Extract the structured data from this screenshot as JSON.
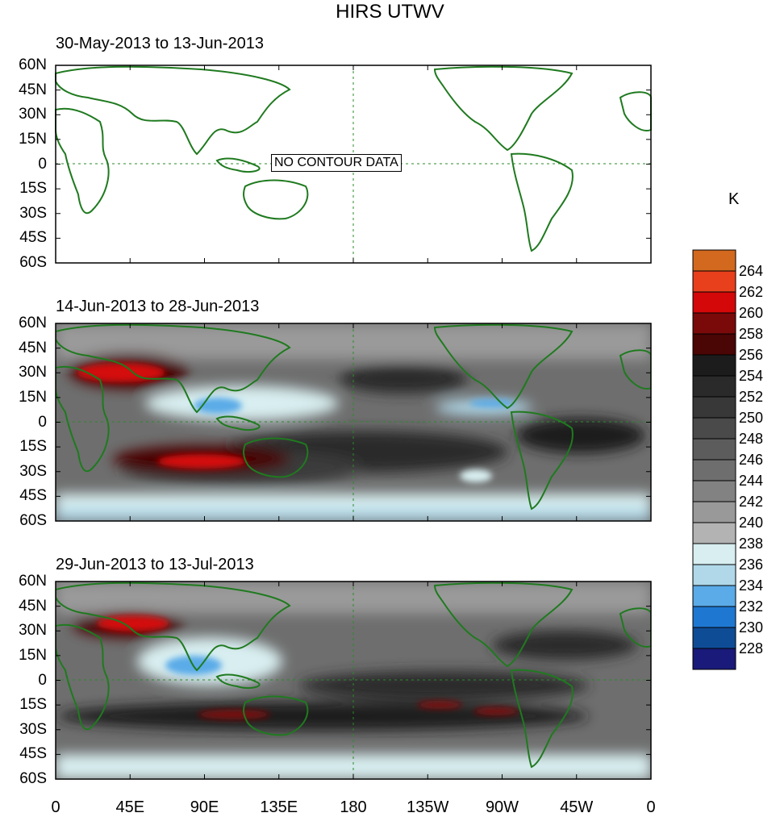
{
  "title": "HIRS UTWV",
  "unit": "K",
  "panels": [
    {
      "label": "30-May-2013 to 13-Jun-2013",
      "no_data_text": "NO CONTOUR DATA"
    },
    {
      "label": "14-Jun-2013 to 28-Jun-2013"
    },
    {
      "label": "29-Jun-2013 to 13-Jul-2013"
    }
  ],
  "lat_labels": [
    "60N",
    "45N",
    "30N",
    "15N",
    "0",
    "15S",
    "30S",
    "45S",
    "60S"
  ],
  "lon_labels": [
    "0",
    "45E",
    "90E",
    "135E",
    "180",
    "135W",
    "90W",
    "45W",
    "0"
  ],
  "colorbar": {
    "labels": [
      "264",
      "262",
      "260",
      "258",
      "256",
      "254",
      "252",
      "250",
      "248",
      "246",
      "244",
      "242",
      "240",
      "238",
      "236",
      "234",
      "232",
      "230",
      "228"
    ],
    "colors": [
      "#d2691e",
      "#e8401c",
      "#d40808",
      "#7a0a0a",
      "#4a0505",
      "#1c1c1c",
      "#2a2a2a",
      "#383838",
      "#4a4a4a",
      "#5c5c5c",
      "#6e6e6e",
      "#828282",
      "#999999",
      "#b3b3b3",
      "#d8eef0",
      "#b0d8e8",
      "#5aabe8",
      "#1e78d2",
      "#0f4c96",
      "#1a1a7a"
    ]
  },
  "chart_data": {
    "type": "heatmap",
    "title": "HIRS UTWV",
    "unit": "K",
    "x_range": [
      "0",
      "0"
    ],
    "y_range": [
      "60S",
      "60N"
    ],
    "levels": [
      228,
      230,
      232,
      234,
      236,
      238,
      240,
      242,
      244,
      246,
      248,
      250,
      252,
      254,
      256,
      258,
      260,
      262,
      264
    ]
  }
}
